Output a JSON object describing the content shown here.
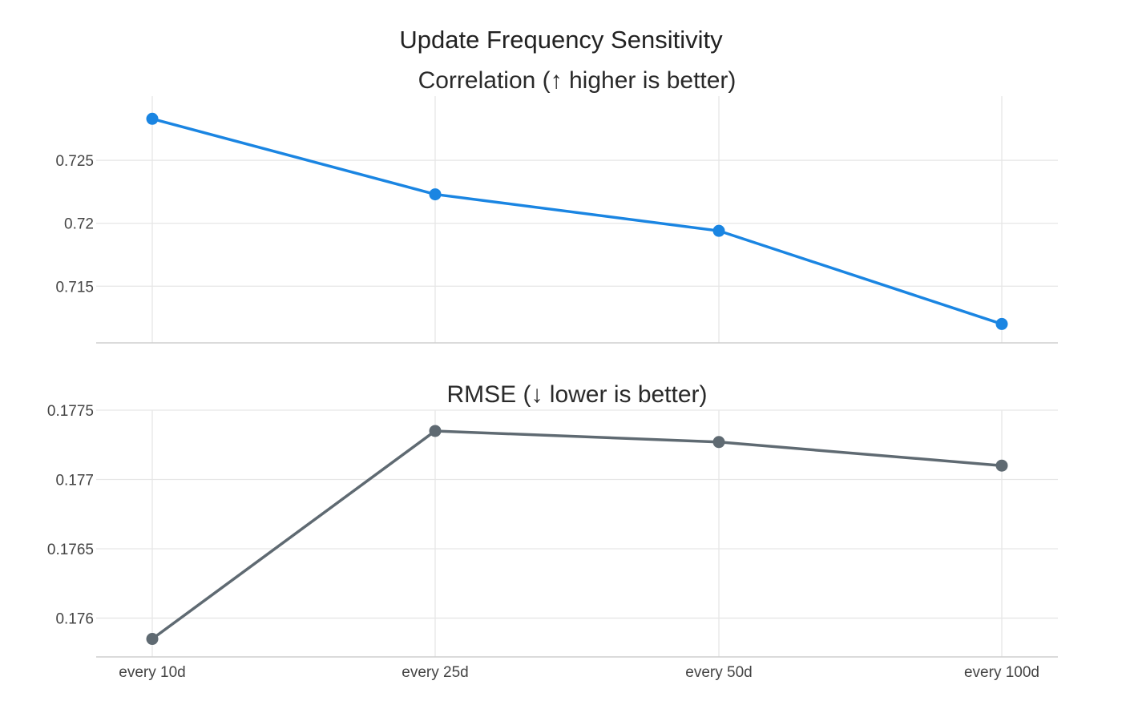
{
  "chart_data": {
    "title": "Update Frequency Sensitivity",
    "type": "line",
    "categories": [
      "every 10d",
      "every 25d",
      "every 50d",
      "every 100d"
    ],
    "colors": {
      "correlation": "#1a85e2",
      "rmse": "#5f6a72"
    },
    "panels": [
      {
        "id": "correlation",
        "type": "line",
        "title": "Correlation (↑ higher is better)",
        "xlabel": "",
        "ylabel": "",
        "ylim": [
          0.7105,
          0.7301
        ],
        "yticks": [
          0.715,
          0.72,
          0.725
        ],
        "ytick_labels": [
          "0.715",
          "0.72",
          "0.725"
        ],
        "show_xtick_labels": false,
        "series": [
          {
            "name": "Correlation",
            "values": [
              0.7283,
              0.7223,
              0.7194,
              0.712
            ]
          }
        ]
      },
      {
        "id": "rmse",
        "type": "line",
        "title": "RMSE (↓ lower is better)",
        "xlabel": "",
        "ylabel": "",
        "ylim": [
          0.17572,
          0.1775
        ],
        "yticks": [
          0.176,
          0.1765,
          0.177,
          0.1775
        ],
        "ytick_labels": [
          "0.176",
          "0.1765",
          "0.177",
          "0.1775"
        ],
        "show_xtick_labels": true,
        "series": [
          {
            "name": "RMSE",
            "values": [
              0.17585,
              0.17735,
              0.17727,
              0.1771
            ]
          }
        ]
      }
    ]
  }
}
